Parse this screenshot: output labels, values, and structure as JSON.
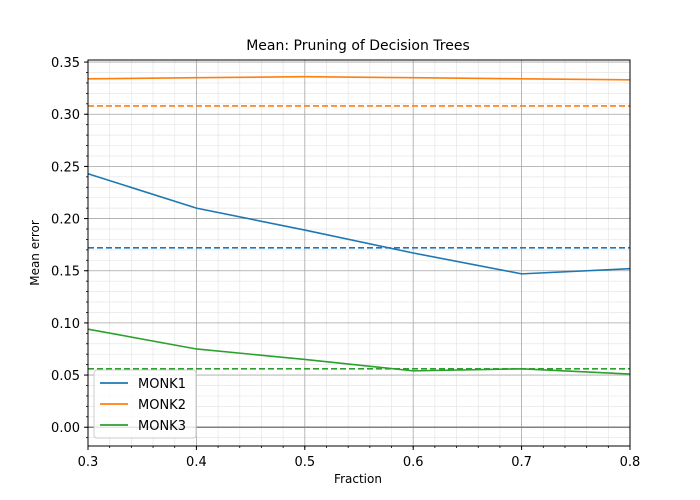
{
  "chart_data": {
    "type": "line",
    "title": "Mean: Pruning of Decision Trees",
    "xlabel": "Fraction",
    "ylabel": "Mean error",
    "xlim": [
      0.3,
      0.8
    ],
    "ylim": [
      -0.018,
      0.352
    ],
    "x_ticks": [
      "0.3",
      "0.4",
      "0.5",
      "0.6",
      "0.7",
      "0.8"
    ],
    "y_ticks": [
      "0.00",
      "0.05",
      "0.10",
      "0.15",
      "0.20",
      "0.25",
      "0.30",
      "0.35"
    ],
    "x": [
      0.3,
      0.4,
      0.5,
      0.6,
      0.7,
      0.8
    ],
    "grid": "major and minor",
    "legend_position": "lower-left",
    "series": [
      {
        "name": "MONK1",
        "color": "#1f77b4",
        "values": [
          0.243,
          0.21,
          0.189,
          0.167,
          0.147,
          0.152
        ],
        "baseline": 0.172
      },
      {
        "name": "MONK2",
        "color": "#ff7f0e",
        "values": [
          0.334,
          0.335,
          0.336,
          0.335,
          0.334,
          0.333
        ],
        "baseline": 0.308
      },
      {
        "name": "MONK3",
        "color": "#2ca02c",
        "values": [
          0.094,
          0.075,
          0.065,
          0.054,
          0.056,
          0.051
        ],
        "baseline": 0.056
      }
    ],
    "zero_line_color": "#808080"
  }
}
